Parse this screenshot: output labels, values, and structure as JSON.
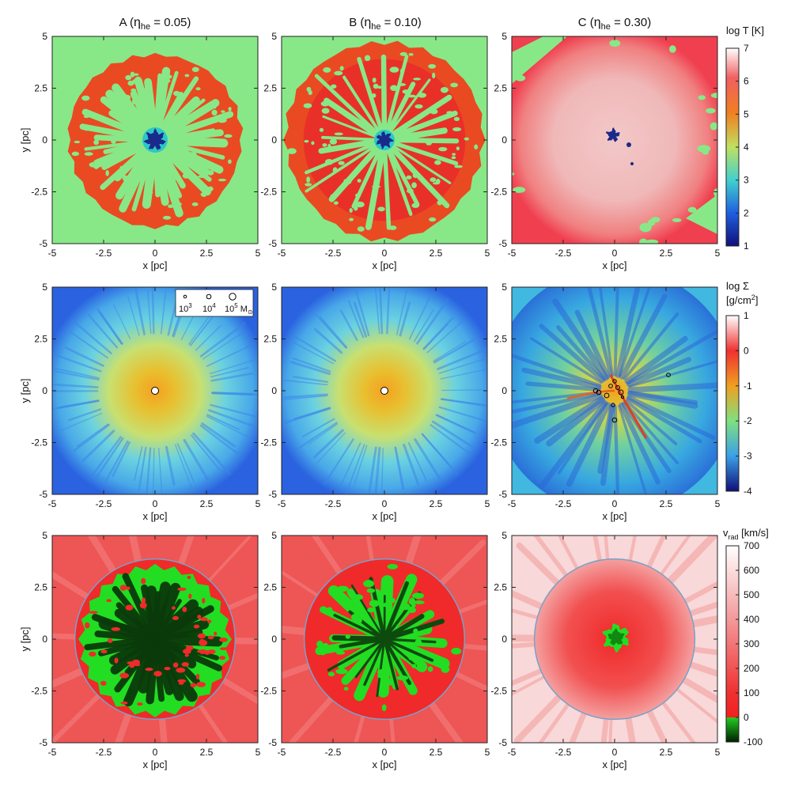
{
  "figure": {
    "columns": [
      {
        "letter": "A (",
        "eta": "η",
        "eta_sub": "he",
        "rest": " = 0.05)"
      },
      {
        "letter": "B (",
        "eta": "η",
        "eta_sub": "he",
        "rest": " = 0.10)"
      },
      {
        "letter": "C (",
        "eta": "η",
        "eta_sub": "he",
        "rest": " = 0.30)"
      }
    ],
    "colors": {
      "temp_bg": "#88e888",
      "temp_shell": "#ea4a22",
      "temp_hot": "#f04050",
      "temp_hot_c": "#f3c8c8",
      "temp_cold": "#1a2a8a",
      "sigma_edge": "#2a62e0",
      "sigma_mid": "#6ad2e0",
      "sigma_core": "#f5a020",
      "vrad_bg": "#ee5555",
      "vrad_inner": "#f02a2a",
      "vrad_neg": "#0a3a0a",
      "vrad_neg_edge": "#22dd22",
      "circle_outline": "#7aa0c8"
    },
    "mass_legend": {
      "m1": "10",
      "e1": "3",
      "m2": "10",
      "e2": "4",
      "m3": "10",
      "e3": "5",
      "unit": " M",
      "unit_sub": "⊙"
    }
  },
  "chart_data": [
    {
      "type": "heatmap",
      "row": 0,
      "quantity": "temperature",
      "colorbar": {
        "label": "log T [K]",
        "range": [
          1,
          7
        ],
        "ticks": [
          "7",
          "6",
          "5",
          "4",
          "3",
          "2",
          "1"
        ]
      },
      "panels": [
        {
          "title": "A (η_he = 0.05)",
          "xlabel": "x [pc]",
          "ylabel": "y [pc]",
          "xlim": [
            -5,
            5
          ],
          "ylim": [
            -5,
            5
          ],
          "xticks": [
            "-5",
            "-2.5",
            "0",
            "2.5",
            "5"
          ],
          "yticks": [
            "5",
            "2.5",
            "0",
            "-2.5",
            "-5"
          ],
          "shell_radius_pc": 4.2
        },
        {
          "title": "B (η_he = 0.10)",
          "xlabel": "x [pc]",
          "xlim": [
            -5,
            5
          ],
          "ylim": [
            -5,
            5
          ],
          "xticks": [
            "-5",
            "-2.5",
            "0",
            "2.5",
            "5"
          ],
          "yticks": [
            "5",
            "2.5",
            "0",
            "-2.5",
            "-5"
          ],
          "shell_radius_pc": 4.8
        },
        {
          "title": "C (η_he = 0.30)",
          "xlabel": "x [pc]",
          "xlim": [
            -5,
            5
          ],
          "ylim": [
            -5,
            5
          ],
          "xticks": [
            "-5",
            "-2.5",
            "0",
            "2.5",
            "5"
          ],
          "yticks": [
            "5",
            "2.5",
            "0",
            "-2.5",
            "-5"
          ],
          "shell_radius_pc": 5.5
        }
      ]
    },
    {
      "type": "heatmap",
      "row": 1,
      "quantity": "surface density",
      "colorbar": {
        "label_main": "log Σ",
        "label_unit": "[g/cm",
        "label_exp": "2",
        "label_close": "]",
        "range": [
          -4,
          1
        ],
        "ticks": [
          "1",
          "0",
          "-1",
          "-2",
          "-3",
          "-4"
        ]
      },
      "panels": [
        {
          "xlabel": "x [pc]",
          "ylabel": "y [pc]",
          "xlim": [
            -5,
            5
          ],
          "ylim": [
            -5,
            5
          ],
          "xticks": [
            "-5",
            "-2.5",
            "0",
            "2.5",
            "5"
          ],
          "yticks": [
            "5",
            "2.5",
            "0",
            "-2.5",
            "-5"
          ],
          "sink": "central"
        },
        {
          "xlabel": "x [pc]",
          "xlim": [
            -5,
            5
          ],
          "ylim": [
            -5,
            5
          ],
          "xticks": [
            "-5",
            "-2.5",
            "0",
            "2.5",
            "5"
          ],
          "yticks": [
            "5",
            "2.5",
            "0",
            "-2.5",
            "-5"
          ],
          "sink": "central"
        },
        {
          "xlabel": "x [pc]",
          "xlim": [
            -5,
            5
          ],
          "ylim": [
            -5,
            5
          ],
          "xticks": [
            "-5",
            "-2.5",
            "0",
            "2.5",
            "5"
          ],
          "yticks": [
            "5",
            "2.5",
            "0",
            "-2.5",
            "-5"
          ],
          "sink": "scattered"
        }
      ]
    },
    {
      "type": "heatmap",
      "row": 2,
      "quantity": "radial velocity",
      "colorbar": {
        "label_main": "v",
        "label_sub": "rad",
        "label_unit": " [km/s]",
        "range": [
          -100,
          700
        ],
        "ticks": [
          "700",
          "600",
          "500",
          "400",
          "300",
          "200",
          "100",
          "0",
          "-100"
        ]
      },
      "panels": [
        {
          "xlabel": "x [pc]",
          "ylabel": "y [pc]",
          "xlim": [
            -5,
            5
          ],
          "ylim": [
            -5,
            5
          ],
          "xticks": [
            "-5",
            "-2.5",
            "0",
            "2.5",
            "5"
          ],
          "yticks": [
            "5",
            "2.5",
            "0",
            "-2.5",
            "-5"
          ],
          "circle_radius_pc": 3.9
        },
        {
          "xlabel": "x [pc]",
          "xlim": [
            -5,
            5
          ],
          "ylim": [
            -5,
            5
          ],
          "xticks": [
            "-5",
            "-2.5",
            "0",
            "2.5",
            "5"
          ],
          "yticks": [
            "5",
            "2.5",
            "0",
            "-2.5",
            "-5"
          ],
          "circle_radius_pc": 3.9
        },
        {
          "xlabel": "x [pc]",
          "xlim": [
            -5,
            5
          ],
          "ylim": [
            -5,
            5
          ],
          "xticks": [
            "-5",
            "-2.5",
            "0",
            "2.5",
            "5"
          ],
          "yticks": [
            "5",
            "2.5",
            "0",
            "-2.5",
            "-5"
          ],
          "circle_radius_pc": 3.9
        }
      ]
    }
  ]
}
